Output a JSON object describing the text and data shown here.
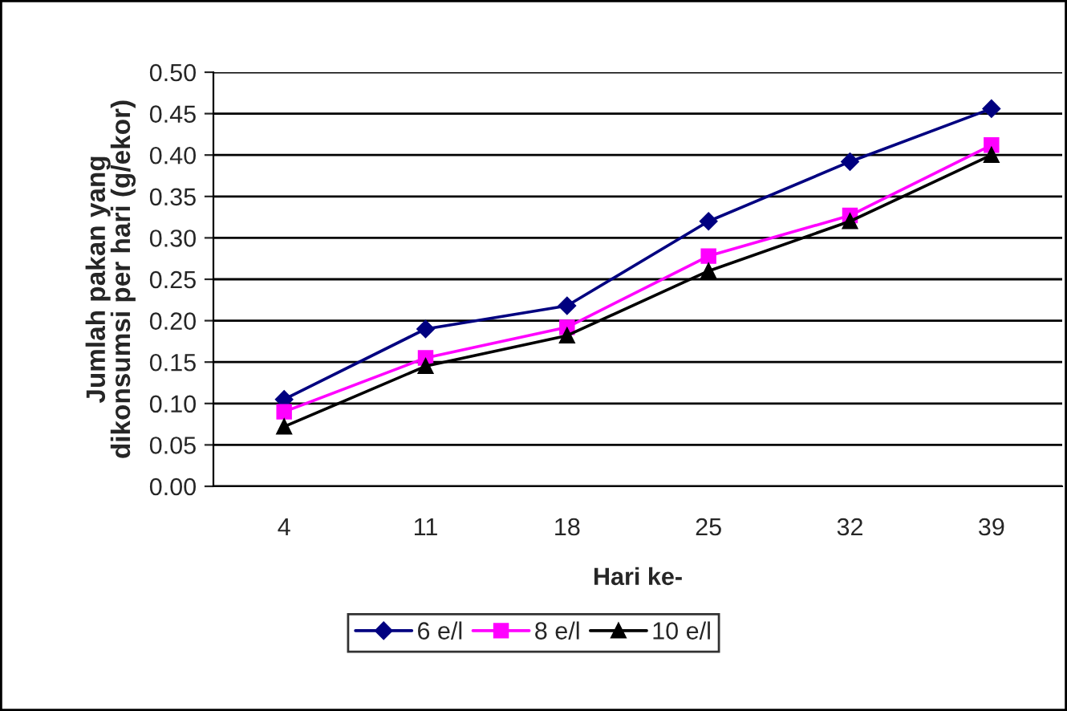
{
  "chart_data": {
    "type": "line",
    "xlabel": "Hari ke-",
    "ylabel": "Jumlah pakan yang\ndikonsumsi per hari (g/ekor)",
    "categories": [
      "4",
      "11",
      "18",
      "25",
      "32",
      "39"
    ],
    "series": [
      {
        "name": "6 e/l",
        "color": "#000080",
        "marker": "diamond",
        "values": [
          0.105,
          0.19,
          0.218,
          0.32,
          0.392,
          0.456
        ]
      },
      {
        "name": "8 e/l",
        "color": "#ff00ff",
        "marker": "square",
        "values": [
          0.09,
          0.155,
          0.192,
          0.278,
          0.327,
          0.412
        ]
      },
      {
        "name": "10 e/l",
        "color": "#000000",
        "marker": "triangle",
        "values": [
          0.072,
          0.145,
          0.182,
          0.26,
          0.32,
          0.4
        ]
      }
    ],
    "ylim": [
      0,
      0.5
    ],
    "yticks": [
      {
        "value": 0,
        "label": "0.00"
      },
      {
        "value": 0.05,
        "label": "0.05"
      },
      {
        "value": 0.1,
        "label": "0.10"
      },
      {
        "value": 0.15,
        "label": "0.15"
      },
      {
        "value": 0.2,
        "label": "0.20"
      },
      {
        "value": 0.25,
        "label": "0.25"
      },
      {
        "value": 0.3,
        "label": "0.30"
      },
      {
        "value": 0.35,
        "label": "0.35"
      },
      {
        "value": 0.4,
        "label": "0.40"
      },
      {
        "value": 0.45,
        "label": "0.45"
      },
      {
        "value": 0.5,
        "label": "0.50"
      }
    ],
    "grid": "y",
    "legend": "bottom",
    "line_style": "solid"
  }
}
